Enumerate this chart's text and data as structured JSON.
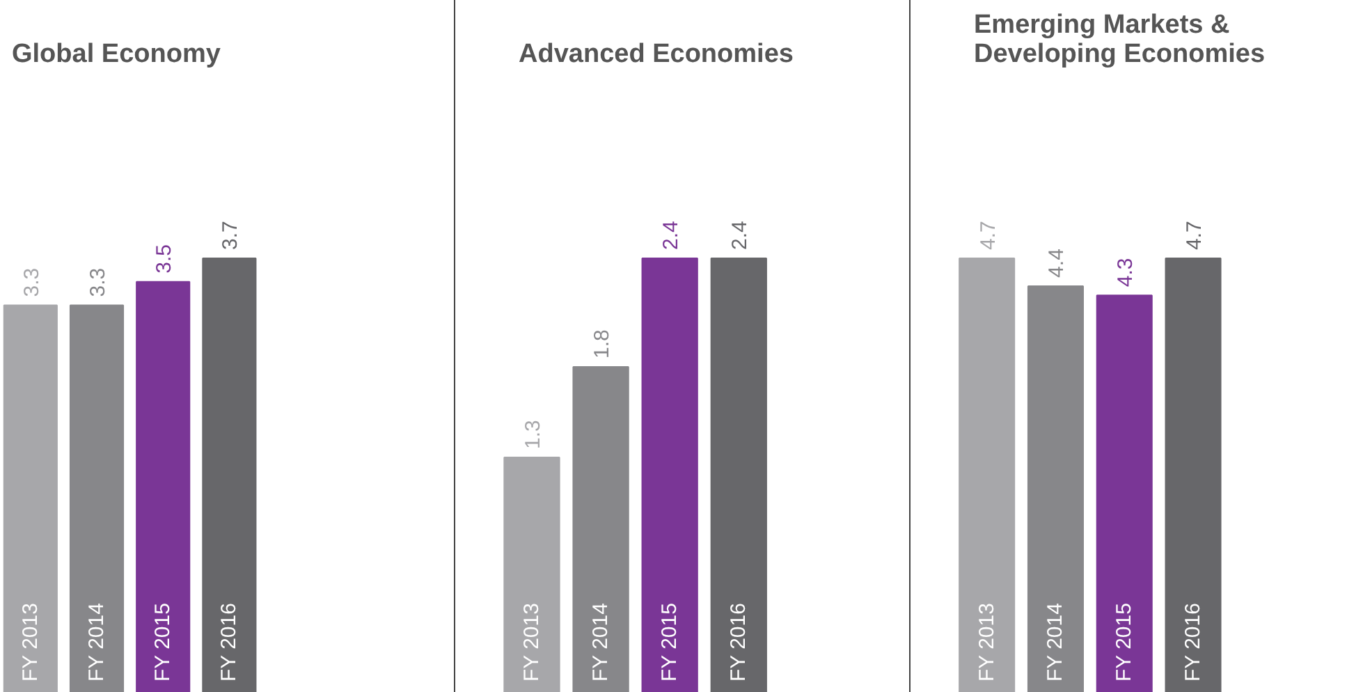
{
  "chart_data": [
    {
      "type": "bar",
      "title": "Global Economy",
      "categories": [
        "FY 2013",
        "FY 2014",
        "FY 2015",
        "FY 2016"
      ],
      "values": [
        3.3,
        3.3,
        3.5,
        3.7
      ],
      "colors": [
        "#a7a7aa",
        "#87878a",
        "#7a3696",
        "#67676a"
      ],
      "data_labels": true
    },
    {
      "type": "bar",
      "title": "Advanced Economies",
      "categories": [
        "FY 2013",
        "FY 2014",
        "FY 2015",
        "FY 2016"
      ],
      "values": [
        1.3,
        1.8,
        2.4,
        2.4
      ],
      "colors": [
        "#a7a7aa",
        "#87878a",
        "#7a3696",
        "#67676a"
      ],
      "data_labels": true
    },
    {
      "type": "bar",
      "title": "Emerging Markets & Developing Economies",
      "categories": [
        "FY 2013",
        "FY 2014",
        "FY 2015",
        "FY 2016"
      ],
      "values": [
        4.7,
        4.4,
        4.3,
        4.7
      ],
      "colors": [
        "#a7a7aa",
        "#87878a",
        "#7a3696",
        "#67676a"
      ],
      "data_labels": true
    }
  ]
}
